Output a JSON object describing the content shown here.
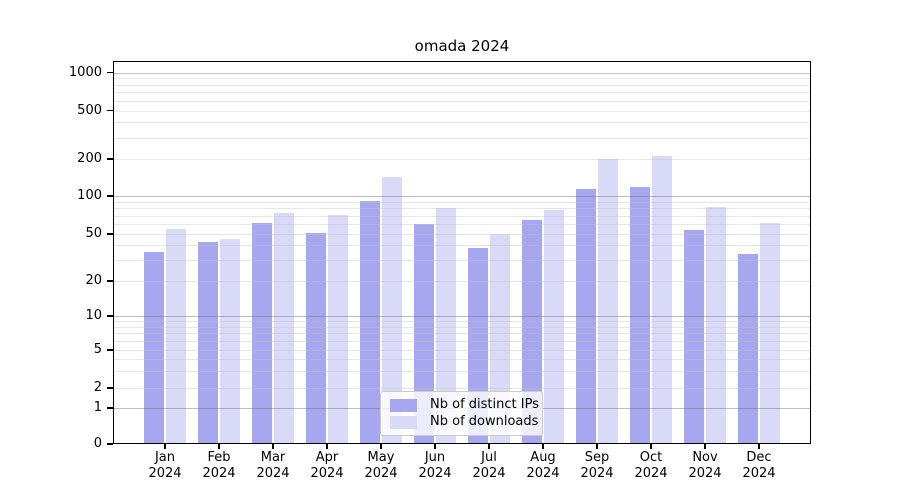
{
  "chart_data": {
    "type": "bar",
    "title": "omada 2024",
    "categories": [
      "Jan",
      "Feb",
      "Mar",
      "Apr",
      "May",
      "Jun",
      "Jul",
      "Aug",
      "Sep",
      "Oct",
      "Nov",
      "Dec"
    ],
    "year": "2024",
    "series": [
      {
        "name": "Nb of distinct IPs",
        "color": "#a7a7f0",
        "values": [
          35,
          43,
          61,
          51,
          91,
          60,
          38,
          64,
          114,
          119,
          54,
          34
        ]
      },
      {
        "name": "Nb of downloads",
        "color": "#d9d9f8",
        "values": [
          55,
          45,
          73,
          71,
          143,
          80,
          50,
          77,
          200,
          213,
          82,
          61
        ]
      }
    ],
    "ylabel": "",
    "xlabel": "",
    "yscale": "symlog",
    "yticks": [
      0,
      1,
      2,
      5,
      10,
      20,
      50,
      100,
      200,
      500,
      1000
    ],
    "ylim": [
      0,
      1100
    ],
    "grid": "horizontal, minor log gridlines shown",
    "legend": {
      "position": "lower center",
      "entries": [
        "Nb of distinct IPs",
        "Nb of downloads"
      ]
    }
  }
}
